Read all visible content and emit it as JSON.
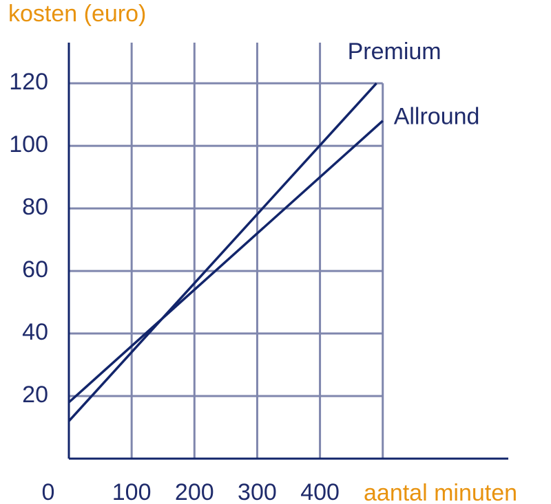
{
  "chart_data": {
    "type": "line",
    "y_label": "kosten (euro)",
    "x_label": "aantal minuten",
    "xlim": [
      0,
      700
    ],
    "ylim": [
      0,
      133
    ],
    "xticks": [
      0,
      100,
      200,
      300,
      400,
      {
        "value": 500,
        "label": null
      }
    ],
    "yticks": [
      20,
      40,
      60,
      80,
      100,
      120
    ],
    "grid": true,
    "series": [
      {
        "name": "Premium",
        "color": "#12256b",
        "x": [
          0,
          490
        ],
        "values": [
          12,
          120
        ]
      },
      {
        "name": "Allround",
        "color": "#12256b",
        "x": [
          0,
          500
        ],
        "values": [
          18,
          108
        ]
      }
    ]
  }
}
